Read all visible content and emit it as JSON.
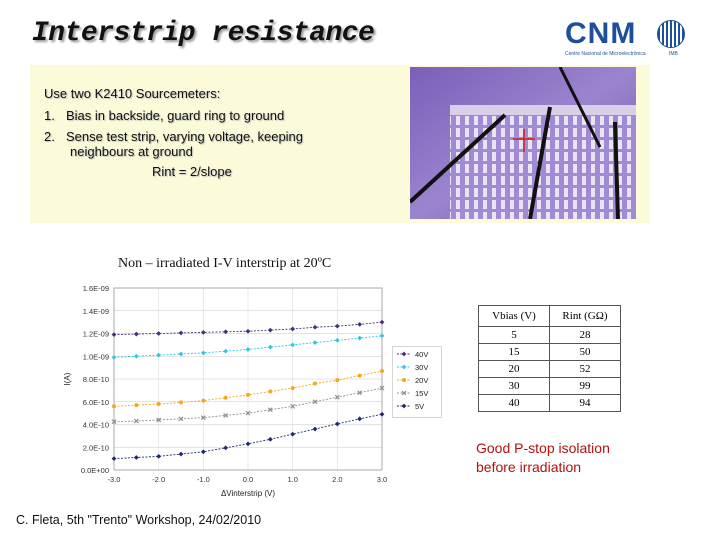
{
  "title": "Interstrip resistance",
  "logo": {
    "text": "CNM",
    "subtitle": "Centre Nacional de Microelectrònica",
    "tag": "IMB"
  },
  "setup": {
    "intro": "Use two K2410 Sourcemeters:",
    "items": [
      {
        "num": "1.",
        "text": "Bias in backside, guard ring to ground"
      },
      {
        "num": "2.",
        "text": "Sense test strip, varying voltage, keeping",
        "text2": "neighbours at ground"
      }
    ],
    "formula": "Rint = 2/slope"
  },
  "chart_title": "Non – irradiated I-V interstrip at 20ºC",
  "chart_data": {
    "type": "scatter",
    "xlabel": "ΔVinterstrip (V)",
    "ylabel": "I(A)",
    "xlim": [
      -3.0,
      3.0
    ],
    "ylim": [
      0,
      1.6e-09
    ],
    "xticks": [
      "-3.0",
      "-2.0",
      "-1.0",
      "0.0",
      "1.0",
      "2.0",
      "3.0"
    ],
    "yticks": [
      "0.0E+00",
      "2.0E-10",
      "4.0E-10",
      "6.0E-10",
      "8.0E-10",
      "1.0E-09",
      "1.2E-09",
      "1.4E-09",
      "1.6E-09"
    ],
    "x": [
      -3.0,
      -2.5,
      -2.0,
      -1.5,
      -1.0,
      -0.5,
      0.0,
      0.5,
      1.0,
      1.5,
      2.0,
      2.5,
      3.0
    ],
    "series": [
      {
        "name": "40V",
        "color": "#4a2f7d",
        "marker": "diamond",
        "values": [
          1.19e-09,
          1.195e-09,
          1.2e-09,
          1.205e-09,
          1.21e-09,
          1.215e-09,
          1.22e-09,
          1.23e-09,
          1.24e-09,
          1.255e-09,
          1.265e-09,
          1.28e-09,
          1.3e-09
        ]
      },
      {
        "name": "30V",
        "color": "#2ec7e6",
        "marker": "diamond",
        "values": [
          9.9e-10,
          1e-09,
          1.01e-09,
          1.02e-09,
          1.03e-09,
          1.045e-09,
          1.06e-09,
          1.08e-09,
          1.1e-09,
          1.12e-09,
          1.14e-09,
          1.16e-09,
          1.18e-09
        ]
      },
      {
        "name": "20V",
        "color": "#f5a623",
        "marker": "circle",
        "values": [
          5.6e-10,
          5.7e-10,
          5.8e-10,
          5.95e-10,
          6.1e-10,
          6.35e-10,
          6.6e-10,
          6.9e-10,
          7.2e-10,
          7.6e-10,
          7.9e-10,
          8.3e-10,
          8.7e-10
        ]
      },
      {
        "name": "15V",
        "color": "#8f8f8f",
        "marker": "x",
        "values": [
          4.25e-10,
          4.3e-10,
          4.4e-10,
          4.5e-10,
          4.6e-10,
          4.8e-10,
          5e-10,
          5.3e-10,
          5.6e-10,
          6e-10,
          6.4e-10,
          6.8e-10,
          7.2e-10
        ]
      },
      {
        "name": "5V",
        "color": "#1f2a6e",
        "marker": "diamond",
        "values": [
          1e-10,
          1.1e-10,
          1.2e-10,
          1.4e-10,
          1.6e-10,
          1.95e-10,
          2.3e-10,
          2.7e-10,
          3.15e-10,
          3.6e-10,
          4.05e-10,
          4.5e-10,
          4.9e-10
        ]
      }
    ],
    "legend": "right"
  },
  "table": {
    "headers": [
      "Vbias (V)",
      "Rint (GΩ)"
    ],
    "rows": [
      [
        "5",
        "28"
      ],
      [
        "15",
        "50"
      ],
      [
        "20",
        "52"
      ],
      [
        "30",
        "99"
      ],
      [
        "40",
        "94"
      ]
    ]
  },
  "note": {
    "line1": "Good P-stop isolation",
    "line2": "before irradiation"
  },
  "footer": "C. Fleta, 5th \"Trento\" Workshop, 24/02/2010",
  "colors": {
    "title_shadow": "#9a9a9a",
    "box_bg": "#fbfbd9",
    "note": "#b3110e",
    "logo": "#1d4f9a"
  }
}
